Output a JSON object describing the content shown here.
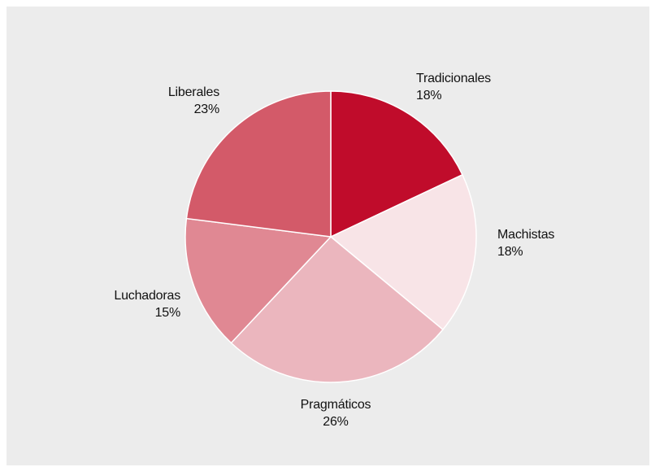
{
  "chart_data": {
    "type": "pie",
    "slices": [
      {
        "label": "Tradicionales",
        "value": 18,
        "value_label": "18%",
        "color": "#c00c2b"
      },
      {
        "label": "Machistas",
        "value": 18,
        "value_label": "18%",
        "color": "#f8e4e7"
      },
      {
        "label": "Pragmáticos",
        "value": 26,
        "value_label": "26%",
        "color": "#ebb6be"
      },
      {
        "label": "Luchadoras",
        "value": 15,
        "value_label": "15%",
        "color": "#e08893"
      },
      {
        "label": "Liberales",
        "value": 23,
        "value_label": "23%",
        "color": "#d35a69"
      }
    ],
    "start": "top, clockwise",
    "legend": "none",
    "background": "#ececec"
  }
}
